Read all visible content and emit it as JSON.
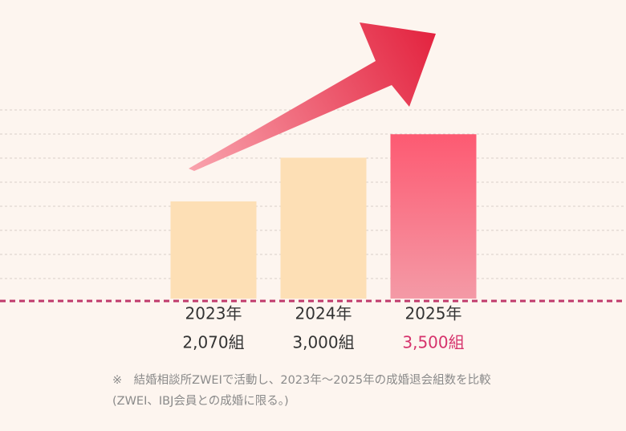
{
  "chart_data": {
    "type": "bar",
    "categories": [
      "2023年",
      "2024年",
      "2025年"
    ],
    "values": [
      2070,
      3000,
      3500
    ],
    "value_labels": [
      "2,070組",
      "3,000組",
      "3,500組"
    ],
    "value_label_colors": [
      "#333333",
      "#333333",
      "#d6336c"
    ],
    "colors": [
      [
        "#fddfb5",
        "#fddfb5"
      ],
      [
        "#fddfb5",
        "#fddfb5"
      ],
      [
        "#fd5a72",
        "#f49aa6"
      ]
    ],
    "ylim": [
      0,
      4000
    ],
    "notes": [
      "※　結婚相談所ZWEIで活動し、2023年〜2025年の成婚退会組数を比較",
      "(ZWEI、IBJ会員との成婚に限る。)"
    ]
  }
}
